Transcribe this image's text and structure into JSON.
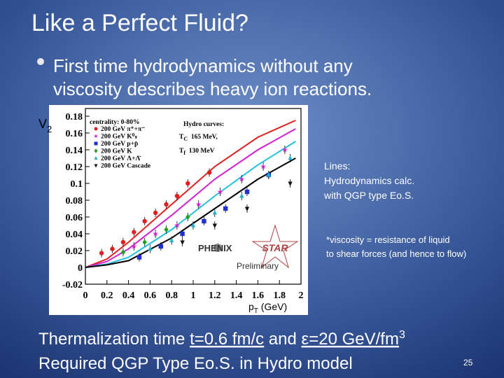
{
  "title": "Like a Perfect Fluid?",
  "bullet": [
    "First time hydrodynamics without any",
    "viscosity describes heavy ion reactions."
  ],
  "chart_data": {
    "type": "scatter",
    "y_label": {
      "main": "V",
      "sub": "2"
    },
    "x_label": {
      "main": "p",
      "sub": "T",
      "rest": " (GeV)"
    },
    "xlim": [
      0,
      2
    ],
    "xticks": [
      0,
      0.2,
      0.4,
      0.6,
      0.8,
      1,
      1.2,
      1.4,
      1.6,
      1.8,
      2
    ],
    "ylim": [
      -0.02,
      0.18
    ],
    "yticks": [
      -0.02,
      0,
      0.02,
      0.04,
      0.06,
      0.08,
      0.1,
      0.12,
      0.14,
      0.16,
      0.18
    ],
    "legend_title": "centrality: 0-80%",
    "series": [
      {
        "name": "200 GeV π⁺+π⁻",
        "color": "#e02020",
        "marker": "circle",
        "x": [
          0.15,
          0.25,
          0.35,
          0.45,
          0.55,
          0.65,
          0.75,
          0.85,
          0.95,
          1.15
        ],
        "values": [
          0.017,
          0.022,
          0.03,
          0.042,
          0.055,
          0.065,
          0.075,
          0.085,
          0.1,
          0.113
        ]
      },
      {
        "name": "200 GeV K⁰ₛ",
        "color": "#d020d0",
        "marker": "star",
        "x": [
          0.45,
          0.65,
          0.85,
          1.05,
          1.25,
          1.45,
          1.65,
          1.85
        ],
        "values": [
          0.025,
          0.04,
          0.05,
          0.075,
          0.09,
          0.105,
          0.12,
          0.14
        ]
      },
      {
        "name": "200 GeV p+p̄",
        "color": "#2030d0",
        "marker": "square",
        "x": [
          0.5,
          0.7,
          0.9,
          1.1,
          1.3,
          1.5,
          1.7
        ],
        "values": [
          0.012,
          0.025,
          0.04,
          0.055,
          0.07,
          0.09,
          0.11
        ]
      },
      {
        "name": "200 GeV K",
        "color": "#20a020",
        "marker": "diamond",
        "x": [
          0.35,
          0.55,
          0.75,
          0.95
        ],
        "values": [
          0.018,
          0.03,
          0.045,
          0.06
        ]
      },
      {
        "name": "200 GeV Λ+Λ̄",
        "color": "#20b0d0",
        "marker": "triangle",
        "x": [
          0.6,
          0.8,
          1.0,
          1.2,
          1.45,
          1.7,
          1.9
        ],
        "values": [
          0.022,
          0.032,
          0.05,
          0.065,
          0.085,
          0.11,
          0.13
        ]
      },
      {
        "name": "200 GeV Cascade",
        "color": "#111111",
        "marker": "triangle-down",
        "x": [
          0.9,
          1.2,
          1.5,
          1.9
        ],
        "values": [
          0.03,
          0.05,
          0.07,
          0.1
        ]
      }
    ],
    "curves": [
      {
        "color": "#e02020",
        "x": [
          0,
          0.2,
          0.4,
          0.8,
          1.2,
          1.6,
          1.95
        ],
        "values": [
          0,
          0.01,
          0.03,
          0.075,
          0.12,
          0.155,
          0.175
        ]
      },
      {
        "color": "#d020d0",
        "x": [
          0,
          0.2,
          0.4,
          0.8,
          1.2,
          1.6,
          1.95
        ],
        "values": [
          0,
          0.007,
          0.022,
          0.062,
          0.105,
          0.14,
          0.165
        ]
      },
      {
        "color": "#20c0e0",
        "x": [
          0,
          0.2,
          0.4,
          0.8,
          1.2,
          1.6,
          1.95
        ],
        "values": [
          0,
          0.004,
          0.012,
          0.045,
          0.085,
          0.122,
          0.15
        ]
      },
      {
        "color": "#000000",
        "x": [
          0,
          0.2,
          0.4,
          0.8,
          1.2,
          1.6,
          1.95
        ],
        "values": [
          0,
          0.003,
          0.008,
          0.035,
          0.07,
          0.105,
          0.13
        ]
      }
    ],
    "hydro": {
      "title": "Hydro curves:",
      "tc": {
        "main": "T",
        "sub": "C",
        "rest": "  165 MeV,"
      },
      "tf": {
        "main": "T",
        "sub": "f",
        "rest": "  130 MeV"
      }
    },
    "annotations": {
      "phenix": "PHENIX",
      "star": "STAR",
      "preliminary": "Preliminary"
    }
  },
  "notes": [
    "Lines:",
    "Hydrodynamics calc.",
    "with QGP type Eo.S."
  ],
  "viscosity": [
    "*viscosity = resistance of liquid",
    "to shear forces (and hence to flow)"
  ],
  "footer": {
    "line1": [
      "Thermalization time ",
      "t=0.6 fm/c",
      " and ",
      "ε=20 GeV/fm",
      "3"
    ],
    "line2": "Required QGP Type Eo.S. in Hydro model"
  },
  "page_number": "25"
}
